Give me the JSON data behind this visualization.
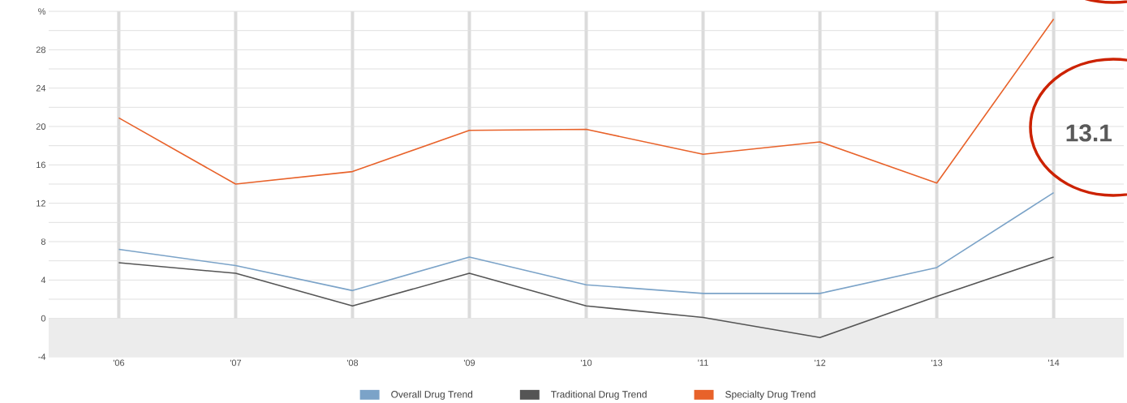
{
  "chart_data": {
    "type": "line",
    "categories": [
      "'06",
      "'07",
      "'08",
      "'09",
      "'10",
      "'11",
      "'12",
      "'13",
      "'14"
    ],
    "series": [
      {
        "name": "Overall Drug Trend",
        "color": "#7ba3c8",
        "values": [
          7.2,
          5.5,
          2.9,
          6.4,
          3.5,
          2.6,
          2.6,
          5.3,
          13.1
        ]
      },
      {
        "name": "Traditional Drug Trend",
        "color": "#555555",
        "values": [
          5.8,
          4.7,
          1.3,
          4.7,
          1.3,
          0.1,
          -2.0,
          2.3,
          6.4
        ]
      },
      {
        "name": "Specialty Drug Trend",
        "color": "#e8622a",
        "values": [
          20.9,
          14.0,
          15.3,
          19.6,
          19.7,
          17.1,
          18.4,
          14.1,
          31.2
        ]
      }
    ],
    "ylim": [
      -4,
      32
    ],
    "yticks": [
      -4,
      0,
      4,
      8,
      12,
      16,
      20,
      24,
      28,
      {
        "value": 32,
        "label": "%"
      }
    ],
    "bands": [
      {
        "axis": "y",
        "from": -4,
        "to": 0,
        "color": "#ececec"
      }
    ],
    "annotations": [
      "13.1"
    ],
    "grid": true,
    "legend": "bottom",
    "marker": "none",
    "line_style": "solid"
  }
}
